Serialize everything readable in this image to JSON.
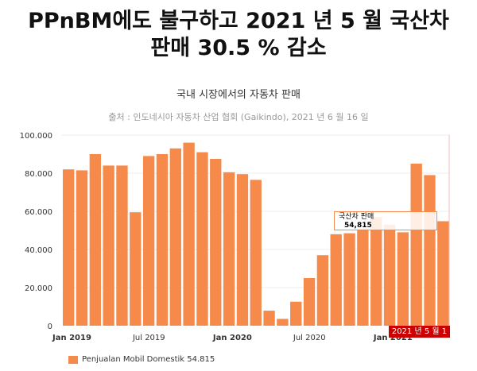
{
  "title_line1": "PPnBM에도 불구하고 2021 년 5 월 국산차",
  "title_line2": "판매 30.5 % 감소",
  "chart_data": {
    "type": "bar",
    "title": "국내 시장에서의 자동차 판매",
    "subtitle": "출처 : 인도네시아 자동차 산업 협회 (Gaikindo), 2021 년 6 월 16 일",
    "categories": [
      "2019-01",
      "2019-02",
      "2019-03",
      "2019-04",
      "2019-05",
      "2019-06",
      "2019-07",
      "2019-08",
      "2019-09",
      "2019-10",
      "2019-11",
      "2019-12",
      "2020-01",
      "2020-02",
      "2020-03",
      "2020-04",
      "2020-05",
      "2020-06",
      "2020-07",
      "2020-08",
      "2020-09",
      "2020-10",
      "2020-11",
      "2020-12",
      "2021-01",
      "2021-02",
      "2021-03",
      "2021-04",
      "2021-05"
    ],
    "values": [
      82000,
      81500,
      90000,
      84000,
      84000,
      59500,
      89000,
      90000,
      93000,
      96000,
      91000,
      87500,
      80500,
      79500,
      76500,
      7900,
      3600,
      12600,
      25000,
      37000,
      48000,
      48500,
      51000,
      57000,
      53000,
      49000,
      85000,
      79000,
      54815
    ],
    "ylim": [
      0,
      100000
    ],
    "yticks": [
      "0",
      "20.000",
      "40.000",
      "60.000",
      "80.000",
      "100.000"
    ],
    "xticks": [
      {
        "label": "Jan 2019",
        "index": 0,
        "bold": true
      },
      {
        "label": "Jul 2019",
        "index": 6,
        "bold": false
      },
      {
        "label": "Jan 2020",
        "index": 12,
        "bold": true
      },
      {
        "label": "Jul 2020",
        "index": 18,
        "bold": false
      },
      {
        "label": "Jan 2021",
        "index": 24,
        "bold": true
      }
    ],
    "color": "#f58a4b",
    "legend": "Penjualan Mobil Domestik 54.815",
    "tooltip": {
      "label": "국산차 판매",
      "value": "54,815"
    },
    "highlight_label": "2021 년 5 월 1"
  }
}
